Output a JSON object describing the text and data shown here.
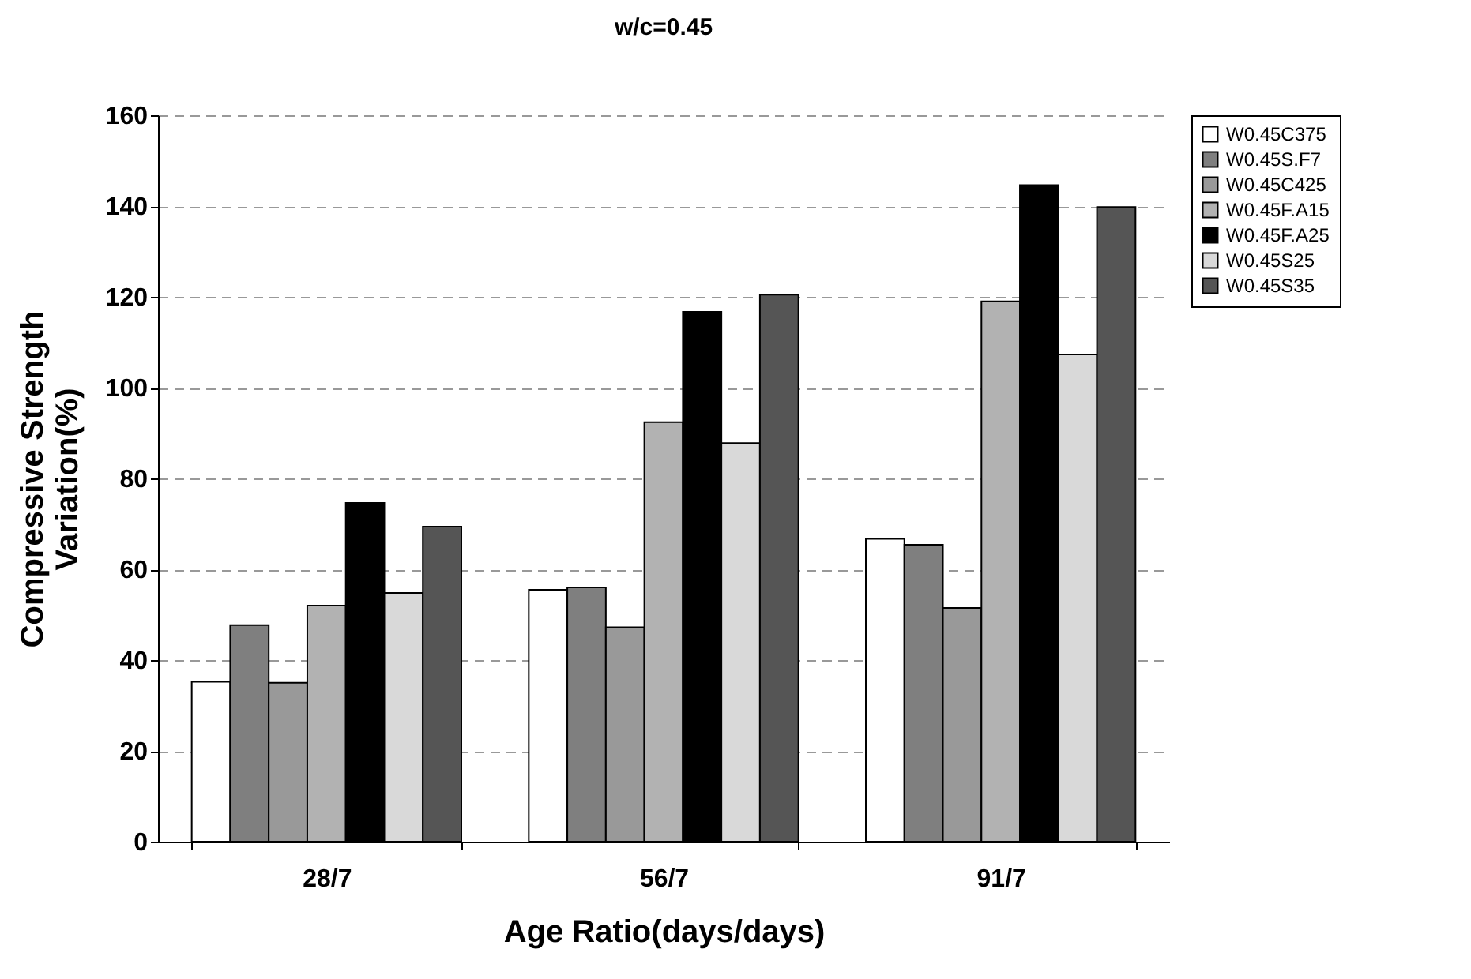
{
  "chart_data": {
    "type": "bar",
    "title": "w/c=0.45",
    "xlabel": "Age Ratio(days/days)",
    "ylabel": "Compressive Strength\nVariation(%)",
    "categories": [
      "28/7",
      "56/7",
      "91/7"
    ],
    "series": [
      {
        "name": "W0.45C375",
        "color": "#ffffff",
        "values": [
          35.2,
          55.5,
          66.7
        ]
      },
      {
        "name": "W0.45S.F7",
        "color": "#7f7f7f",
        "values": [
          47.7,
          56.0,
          65.4
        ]
      },
      {
        "name": "W0.45C425",
        "color": "#999999",
        "values": [
          35.0,
          47.2,
          51.5
        ]
      },
      {
        "name": "W0.45F.A15",
        "color": "#b2b2b2",
        "values": [
          52.0,
          92.4,
          119.0
        ]
      },
      {
        "name": "W0.45F.A25",
        "color": "#000000",
        "values": [
          74.6,
          116.7,
          144.6
        ]
      },
      {
        "name": "W0.45S25",
        "color": "#d9d9d9",
        "values": [
          54.8,
          87.8,
          107.3
        ]
      },
      {
        "name": "W0.45S35",
        "color": "#555555",
        "values": [
          69.4,
          120.5,
          139.8
        ]
      }
    ],
    "ylim": [
      0,
      160
    ],
    "yticks": [
      0,
      20,
      40,
      60,
      80,
      100,
      120,
      140,
      160
    ],
    "grid": "y",
    "legend": "right"
  }
}
